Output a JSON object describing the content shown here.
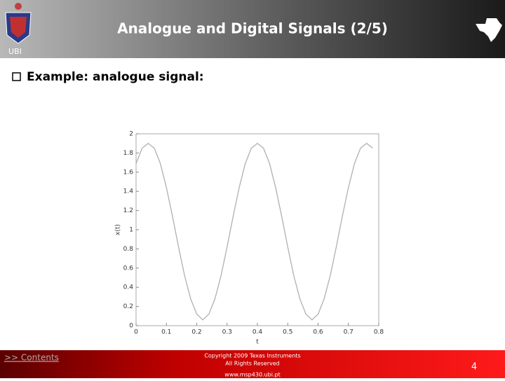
{
  "header": {
    "title": "Analogue and Digital Signals (2/5)",
    "logo_text": "UBI"
  },
  "bullet": "Example: analogue signal:",
  "chart_data": {
    "type": "line",
    "x": [
      0,
      0.02,
      0.04,
      0.06,
      0.08,
      0.1,
      0.12,
      0.14,
      0.16,
      0.18,
      0.2,
      0.22,
      0.24,
      0.26,
      0.28,
      0.3,
      0.32,
      0.34,
      0.36,
      0.38,
      0.4,
      0.42,
      0.44,
      0.46,
      0.48,
      0.5,
      0.52,
      0.54,
      0.56,
      0.58,
      0.6,
      0.62,
      0.64,
      0.66,
      0.68,
      0.7,
      0.72,
      0.74,
      0.76,
      0.78
    ],
    "values": [
      1.69,
      1.85,
      1.9,
      1.85,
      1.69,
      1.44,
      1.14,
      0.82,
      0.52,
      0.28,
      0.12,
      0.06,
      0.12,
      0.28,
      0.52,
      0.82,
      1.14,
      1.44,
      1.69,
      1.85,
      1.9,
      1.85,
      1.69,
      1.44,
      1.14,
      0.82,
      0.52,
      0.28,
      0.12,
      0.06,
      0.12,
      0.28,
      0.52,
      0.82,
      1.14,
      1.44,
      1.69,
      1.85,
      1.9,
      1.85
    ],
    "color": "#b0b0b0",
    "xlim": [
      0,
      0.8
    ],
    "ylim": [
      0,
      2
    ],
    "xticks": [
      0,
      0.1,
      0.2,
      0.3,
      0.4,
      0.5,
      0.6,
      0.7,
      0.8
    ],
    "yticks": [
      0,
      0.2,
      0.4,
      0.6,
      0.8,
      1,
      1.2,
      1.4,
      1.6,
      1.8,
      2
    ],
    "xlabel": "t",
    "ylabel": "x(t)"
  },
  "footer": {
    "link": ">> Contents",
    "copyright": [
      "Copyright  2009 Texas Instruments",
      "All Rights Reserved"
    ],
    "url": "www.msp430.ubi.pt",
    "page": 4
  }
}
